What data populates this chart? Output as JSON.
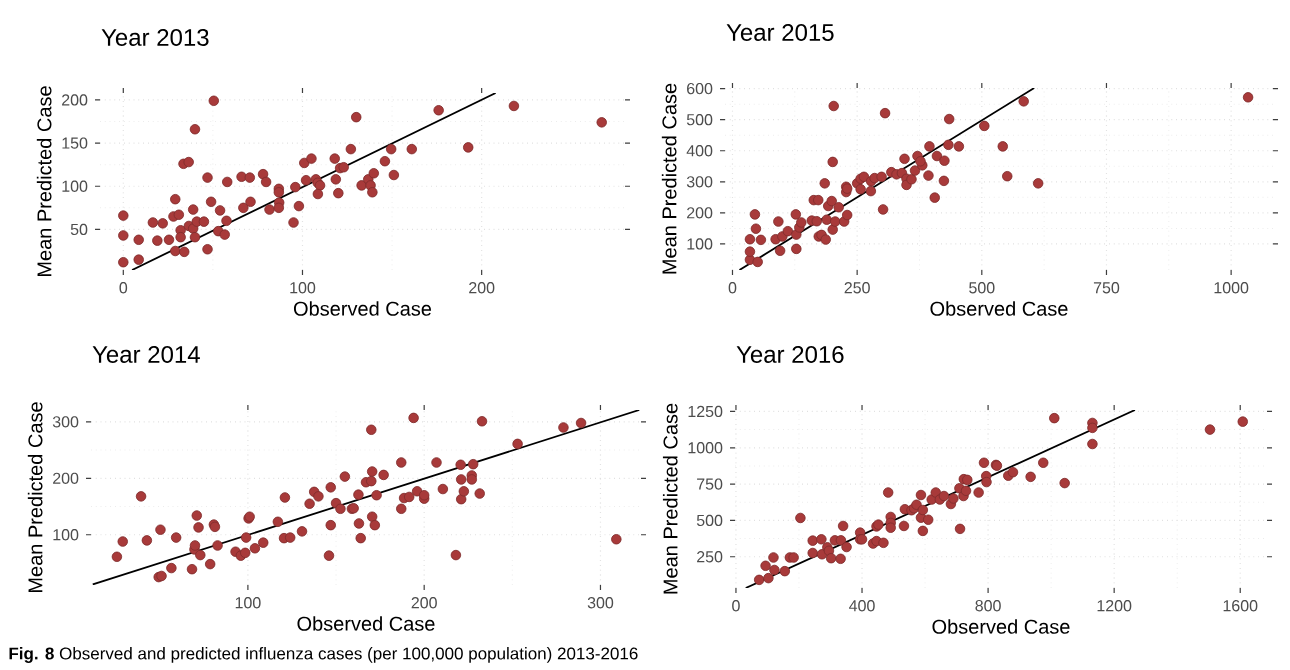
{
  "chart_data": [
    {
      "type": "scatter",
      "title": "Year 2013",
      "xlabel": "Observed Case",
      "ylabel": "Mean Predicted Case",
      "xlim": [
        -13,
        280
      ],
      "ylim": [
        3,
        208
      ],
      "xticks": [
        0,
        100,
        200
      ],
      "yticks": [
        50,
        100,
        150,
        200
      ],
      "grid": true,
      "annotations": [
        "**Fig. 8** Observed and predicted influenza cases (per 100,000 population) 2013-2016"
      ],
      "series": [
        {
          "marker": "circle",
          "color": "#a83a3a",
          "x": [
            0,
            0,
            0,
            8.6,
            8.6,
            16.5,
            19,
            22,
            25.5,
            29,
            28,
            31,
            29,
            32,
            32,
            34,
            33.6,
            36.5,
            36.6,
            39,
            39,
            40,
            40,
            41,
            45,
            47,
            47,
            49,
            50.5,
            53,
            54,
            56.6,
            57.6,
            58,
            66,
            67,
            70.6,
            71,
            78,
            79.7,
            81.6,
            86.8,
            86.8,
            87,
            86.8,
            95,
            96,
            98,
            101,
            102,
            105,
            107.5,
            108.5,
            109.8,
            108.6,
            118,
            118.6,
            120,
            121,
            123,
            127,
            130,
            133,
            136.7,
            138,
            139,
            139.8,
            146,
            149.5,
            151,
            161,
            176,
            192.5,
            218,
            267
          ],
          "values": [
            66,
            43,
            12,
            38,
            15,
            58,
            37,
            57,
            38,
            85,
            65,
            67,
            25,
            49,
            41,
            24,
            126,
            128,
            54,
            73,
            51,
            41,
            166,
            59,
            59,
            110,
            27,
            82,
            199,
            48,
            72,
            44,
            60,
            105,
            111,
            75,
            110,
            82,
            114,
            105,
            73,
            97,
            93,
            81,
            75,
            58,
            99,
            77,
            127,
            107,
            132,
            108,
            104,
            101,
            91,
            132,
            108,
            92,
            121,
            122,
            143,
            180,
            101,
            108,
            101,
            93,
            115,
            129,
            143,
            113,
            143,
            188,
            145,
            193,
            174
          ]
        },
        {
          "type": "line",
          "color": "#000000",
          "x": [
            4.9,
            207.8
          ],
          "values": [
            3,
            208
          ]
        }
      ]
    },
    {
      "type": "scatter",
      "title": "Year 2015",
      "xlabel": "Observed Case",
      "ylabel": "Mean Predicted Case",
      "xlim": [
        -15,
        1084
      ],
      "ylim": [
        16,
        602
      ],
      "xticks": [
        0,
        250,
        500,
        750,
        1000
      ],
      "yticks": [
        100,
        200,
        300,
        400,
        500,
        600
      ],
      "grid": true,
      "series": [
        {
          "marker": "circle",
          "color": "#a83a3a",
          "x": [
            35,
            35,
            50.5,
            35,
            47,
            45,
            57,
            86.5,
            95.5,
            92,
            100,
            111,
            127,
            128,
            128,
            134,
            138,
            159,
            163,
            172,
            169,
            173,
            178.6,
            187,
            189,
            185,
            192,
            199,
            201,
            201,
            206,
            213,
            203,
            224,
            230,
            228,
            228,
            230,
            250,
            257,
            257,
            263.6,
            277.5,
            278,
            285,
            299,
            302,
            306,
            318.6,
            329,
            339.8,
            345,
            349,
            349,
            359,
            366,
            371,
            380.6,
            377,
            393,
            395,
            410,
            405.6,
            425,
            424,
            433,
            434.6,
            454,
            505,
            542,
            551,
            584,
            613,
            1034
          ],
          "values": [
            49,
            75,
            42,
            115,
            149,
            195,
            113,
            115,
            78,
            172,
            124,
            141,
            195,
            84,
            130,
            153,
            169,
            175,
            241,
            241,
            173,
            124,
            129,
            114,
            178,
            295,
            222,
            238,
            364,
            146,
            172,
            218,
            544,
            172,
            193,
            284,
            267,
            278,
            295,
            310,
            276,
            316,
            270,
            302,
            312,
            316,
            211,
            521,
            331,
            324,
            328,
            374,
            310,
            290,
            308,
            336,
            383,
            353,
            366,
            320,
            414,
            383,
            249,
            368,
            303,
            419,
            502,
            414,
            480,
            414,
            318,
            559,
            295,
            572
          ]
        },
        {
          "type": "line",
          "color": "#000000",
          "x": [
            14,
            605
          ],
          "values": [
            16,
            602
          ]
        }
      ]
    },
    {
      "type": "scatter",
      "title": "Year 2014",
      "xlabel": "Observed Case",
      "ylabel": "Mean Predicted Case",
      "xlim": [
        11,
        323
      ],
      "ylim": [
        11,
        321
      ],
      "xticks": [
        100,
        200,
        300
      ],
      "yticks": [
        100,
        200,
        300
      ],
      "grid": true,
      "series": [
        {
          "marker": "circle",
          "color": "#a83a3a",
          "x": [
            25.7,
            29,
            39.4,
            42.7,
            49.4,
            51,
            50.4,
            56.6,
            59.3,
            68.3,
            69.7,
            70,
            71,
            72,
            73,
            78.6,
            80.7,
            81.3,
            82.8,
            93,
            96,
            98.5,
            99,
            100.4,
            101,
            104,
            108.7,
            117,
            120.5,
            121,
            124,
            130.7,
            135,
            137.6,
            140,
            146,
            147,
            147,
            150,
            152.5,
            155,
            159,
            160,
            162.7,
            163,
            164,
            167,
            170,
            170,
            170.5,
            170.5,
            172,
            173,
            177,
            187,
            187,
            188.6,
            191.5,
            194,
            196,
            200,
            200,
            207,
            210.6,
            218,
            220.7,
            221,
            221,
            222.5,
            227,
            227,
            227.8,
            231.5,
            232.8,
            253,
            279,
            289,
            309
          ],
          "values": [
            61,
            88,
            168,
            90,
            25,
            27,
            109,
            41,
            95,
            39,
            74,
            81,
            134,
            113,
            64,
            48,
            118,
            114,
            81,
            70,
            63,
            68,
            95,
            129,
            132,
            76,
            86,
            123,
            94,
            166,
            95,
            106,
            155,
            176,
            168,
            63,
            117,
            184,
            156,
            146,
            203,
            146,
            147,
            171,
            120,
            94,
            193,
            195,
            286,
            132,
            212,
            117,
            170,
            206,
            228,
            146,
            165,
            167,
            307,
            177,
            164,
            170,
            228,
            181,
            64,
            224,
            198,
            163,
            177,
            205,
            198,
            225,
            173,
            301,
            261,
            290,
            298,
            92
          ]
        },
        {
          "type": "line",
          "color": "#000000",
          "x": [
            12,
            322
          ],
          "values": [
            12,
            321
          ]
        }
      ]
    },
    {
      "type": "scatter",
      "title": "Year 2016",
      "xlabel": "Observed Case",
      "ylabel": "Mean Predicted Case",
      "xlim": [
        -3,
        1685
      ],
      "ylim": [
        35,
        1260
      ],
      "xticks": [
        0,
        400,
        800,
        1200,
        1600
      ],
      "yticks": [
        250,
        500,
        750,
        1000,
        1250
      ],
      "grid": true,
      "series": [
        {
          "marker": "circle",
          "color": "#a83a3a",
          "x": [
            73.6,
            103,
            94,
            122,
            119,
            155,
            171,
            183,
            204.5,
            243.5,
            243.5,
            271,
            273,
            290,
            295,
            302,
            314,
            333,
            332,
            340,
            351,
            394,
            394,
            400,
            435,
            446,
            446,
            452,
            468,
            483,
            491,
            491,
            491,
            533,
            536,
            557,
            565,
            573,
            587,
            587,
            593,
            593,
            610,
            621,
            634,
            647,
            660,
            682,
            690,
            709,
            711,
            722,
            723,
            730,
            734,
            770,
            787,
            794,
            795,
            825,
            828,
            864,
            879,
            935,
            975,
            1010,
            1043,
            1131,
            1131,
            1131,
            1504,
            1608
          ],
          "values": [
            91,
            103,
            188,
            159,
            245,
            151,
            245,
            245,
            517,
            361,
            276,
            370,
            267,
            315,
            291,
            240,
            363,
            363,
            236,
            462,
            317,
            416,
            370,
            370,
            341,
            358,
            459,
            471,
            346,
            692,
            524,
            483,
            450,
            462,
            577,
            570,
            584,
            608,
            675,
            519,
            572,
            428,
            505,
            644,
            692,
            644,
            668,
            613,
            651,
            721,
            442,
            668,
            784,
            704,
            779,
            692,
            897,
            805,
            764,
            882,
            877,
            808,
            832,
            800,
            897,
            1204,
            757,
            1171,
            1137,
            1026,
            1125,
            1180
          ]
        },
        {
          "type": "line",
          "color": "#000000",
          "x": [
            31,
            1266
          ],
          "values": [
            35,
            1260
          ]
        }
      ]
    }
  ]
}
